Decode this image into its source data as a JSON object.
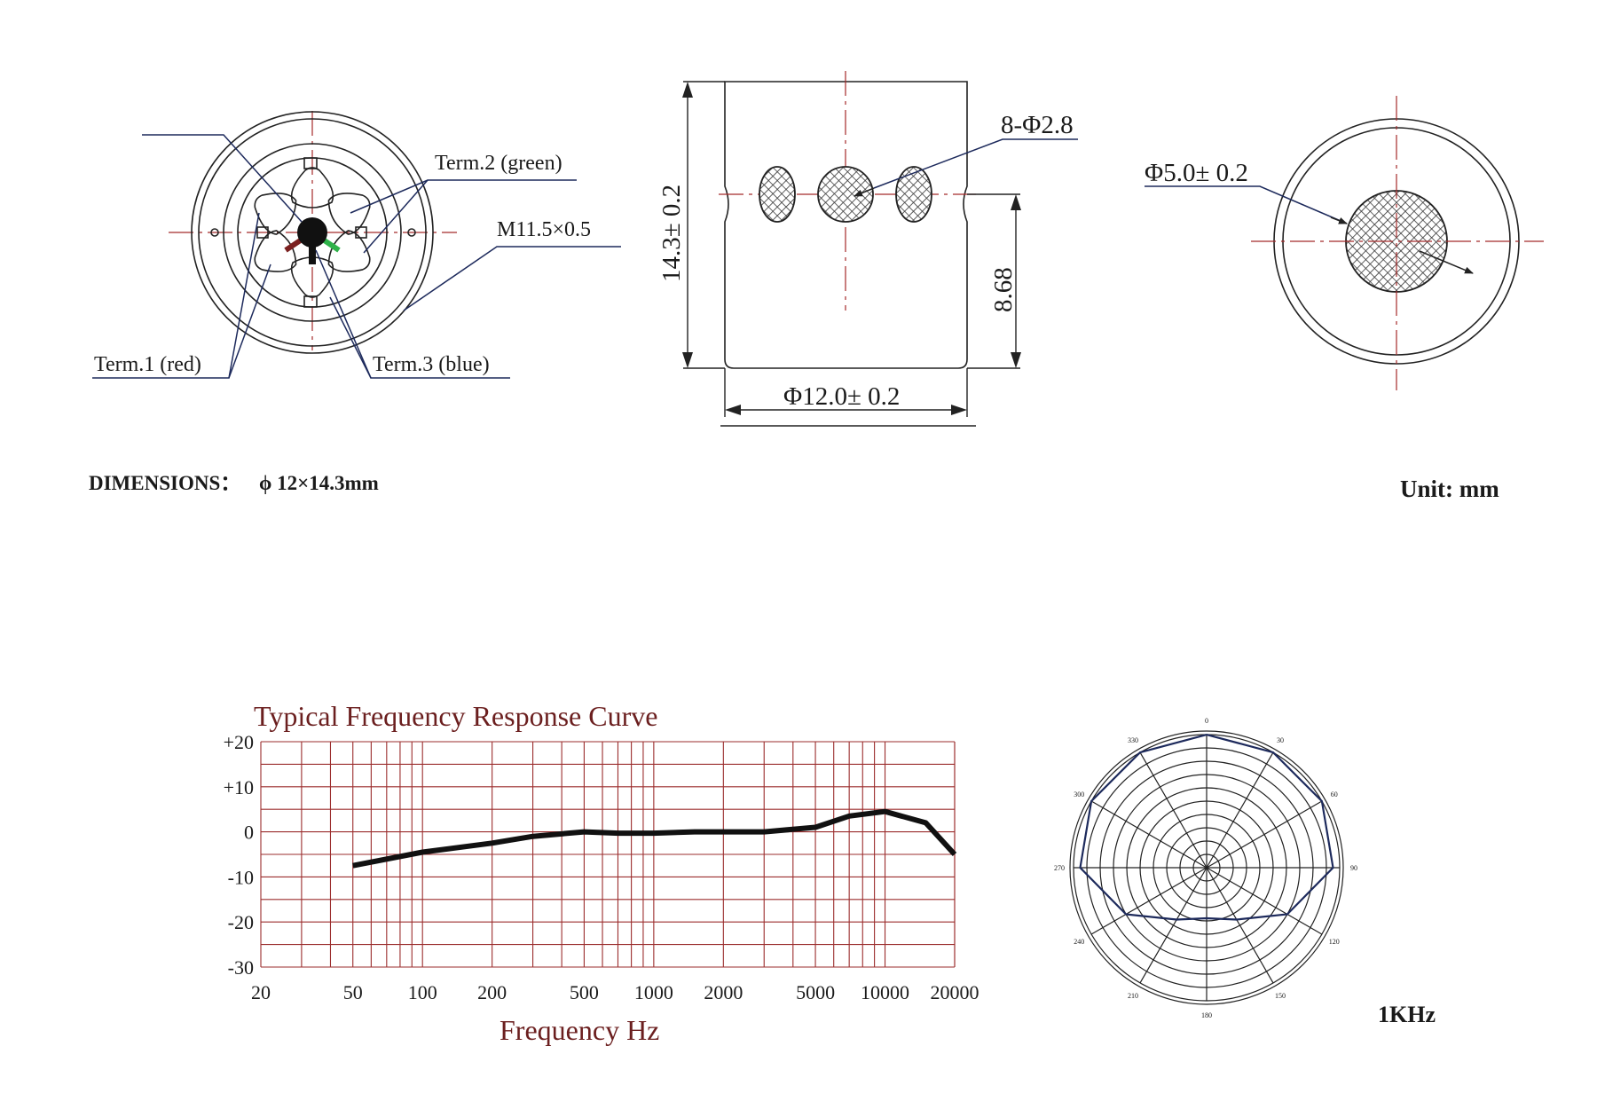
{
  "front_view": {
    "term2": "Term.2 (green)",
    "thread": "M11.5×0.5",
    "term1": "Term.1 (red)",
    "term3": "Term.3 (blue)",
    "term_colors": {
      "red": "#7a2020",
      "green": "#2fb24a",
      "blue": "#2a3d8f"
    }
  },
  "side_view": {
    "holes": "8-Φ2.8",
    "height": "14.3± 0.2",
    "offset": "8.68",
    "diameter": "Φ12.0± 0.2"
  },
  "back_view": {
    "port": "Φ5.0± 0.2"
  },
  "dimensions": {
    "label": "DIMENSIONS：",
    "value": "ϕ 12×14.3mm"
  },
  "unit": "Unit: mm",
  "chart_data": {
    "type": "line",
    "title": "Typical  Frequency  Response  Curve",
    "xlabel": "Frequency    Hz",
    "ylabel": "",
    "x_scale": "log",
    "xlim": [
      20,
      20000
    ],
    "ylim": [
      -30,
      20
    ],
    "x_ticks": [
      "20",
      "50",
      "100",
      "200",
      "500",
      "1000",
      "2000",
      "5000",
      "10000",
      "20000"
    ],
    "x_tick_values": [
      20,
      50,
      100,
      200,
      500,
      1000,
      2000,
      5000,
      10000,
      20000
    ],
    "y_ticks": [
      "+20",
      "+10",
      "0",
      "-10",
      "-20",
      "-30"
    ],
    "y_tick_values": [
      20,
      10,
      0,
      -10,
      -20,
      -30
    ],
    "grid": true,
    "series": [
      {
        "x": [
          50,
          100,
          200,
          300,
          500,
          700,
          1000,
          1500,
          2000,
          3000,
          5000,
          7000,
          10000,
          15000,
          20000
        ],
        "values": [
          -7.5,
          -4.5,
          -2.5,
          -1,
          0,
          -0.3,
          -0.3,
          0,
          0,
          0,
          1,
          3.5,
          4.5,
          2,
          -5
        ]
      }
    ]
  },
  "polar_chart": {
    "type": "polar",
    "frequency": "1KHz",
    "angle_labels": [
      "0",
      "30",
      "60",
      "90",
      "120",
      "150",
      "180",
      "210",
      "240",
      "270",
      "300",
      "330"
    ],
    "rings": 10,
    "response": [
      {
        "angle": 0,
        "r": 1.0
      },
      {
        "angle": 30,
        "r": 1.0
      },
      {
        "angle": 60,
        "r": 1.0
      },
      {
        "angle": 90,
        "r": 0.95
      },
      {
        "angle": 120,
        "r": 0.7
      },
      {
        "angle": 150,
        "r": 0.45
      },
      {
        "angle": 180,
        "r": 0.38
      },
      {
        "angle": 210,
        "r": 0.45
      },
      {
        "angle": 240,
        "r": 0.7
      },
      {
        "angle": 270,
        "r": 0.95
      },
      {
        "angle": 300,
        "r": 1.0
      },
      {
        "angle": 330,
        "r": 1.0
      }
    ]
  }
}
